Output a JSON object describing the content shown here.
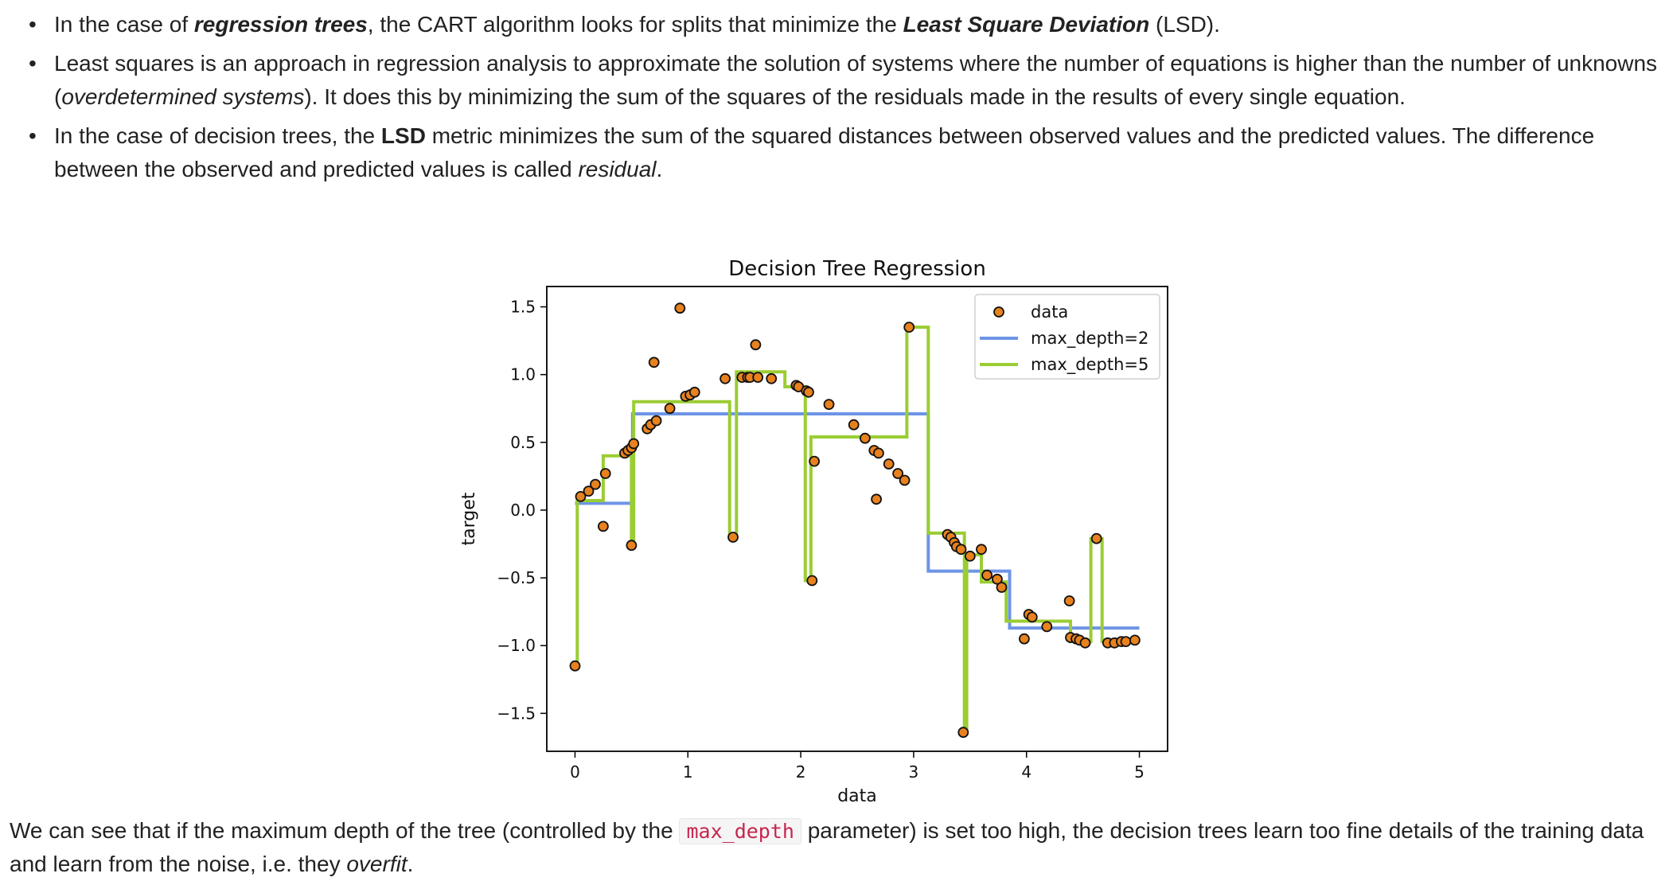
{
  "bullets": [
    {
      "p1": "In the case of ",
      "b1": "regression trees",
      "p2": ", the CART algorithm looks for splits that minimize the ",
      "b2": "Least Square Deviation",
      "p3": " (LSD)."
    },
    {
      "p1": "Least squares is an approach in regression analysis to approximate the solution of systems where the number of equations is higher than the number of unknowns (",
      "i1": "overdetermined systems",
      "p2": "). It does this by minimizing the sum of the squares of the residuals made in the results of every single equation."
    },
    {
      "p1": "In the case of decision trees, the ",
      "b1": "LSD",
      "p2": " metric minimizes the sum of the squared distances between observed values and the predicted values. The difference between the observed and predicted values is called ",
      "i1": "residual",
      "p3": "."
    }
  ],
  "conclusion": {
    "p1": "We can see that if the maximum depth of the tree (controlled by the ",
    "code": "max_depth",
    "p2": " parameter) is set too high, the decision trees learn too fine details of the training data and learn from the noise, i.e. they ",
    "i1": "overfit",
    "p3": "."
  },
  "chart_data": {
    "type": "scatter",
    "title": "Decision Tree Regression",
    "xlabel": "data",
    "ylabel": "target",
    "xlim": [
      -0.25,
      5.25
    ],
    "ylim": [
      -1.78,
      1.65
    ],
    "xticks": [
      0,
      1,
      2,
      3,
      4,
      5
    ],
    "yticks": [
      1.5,
      1.0,
      0.5,
      0.0,
      -0.5,
      -1.0,
      -1.5
    ],
    "ytick_labels": [
      "1.5",
      "1.0",
      "0.5",
      "0.0",
      "−0.5",
      "−1.0",
      "−1.5"
    ],
    "grid": false,
    "legend_position": "top-right",
    "colors": {
      "data": "#e8821e",
      "depth2": "#6d94e6",
      "depth5": "#9acd32"
    },
    "legend": [
      {
        "label": "data",
        "kind": "point"
      },
      {
        "label": "max_depth=2",
        "kind": "line",
        "series": "depth2"
      },
      {
        "label": "max_depth=5",
        "kind": "line",
        "series": "depth5"
      }
    ],
    "points": [
      [
        0.0,
        -1.15
      ],
      [
        0.05,
        0.1
      ],
      [
        0.12,
        0.14
      ],
      [
        0.18,
        0.19
      ],
      [
        0.25,
        -0.12
      ],
      [
        0.27,
        0.27
      ],
      [
        0.44,
        0.42
      ],
      [
        0.47,
        0.44
      ],
      [
        0.5,
        0.46
      ],
      [
        0.5,
        -0.26
      ],
      [
        0.52,
        0.49
      ],
      [
        0.64,
        0.6
      ],
      [
        0.67,
        0.63
      ],
      [
        0.72,
        0.66
      ],
      [
        0.7,
        1.09
      ],
      [
        0.84,
        0.75
      ],
      [
        0.93,
        1.49
      ],
      [
        0.98,
        0.84
      ],
      [
        1.02,
        0.85
      ],
      [
        1.06,
        0.87
      ],
      [
        1.33,
        0.97
      ],
      [
        1.4,
        -0.2
      ],
      [
        1.48,
        0.98
      ],
      [
        1.53,
        0.98
      ],
      [
        1.55,
        0.98
      ],
      [
        1.6,
        1.22
      ],
      [
        1.62,
        0.98
      ],
      [
        1.74,
        0.97
      ],
      [
        1.96,
        0.92
      ],
      [
        1.98,
        0.91
      ],
      [
        2.05,
        0.88
      ],
      [
        2.07,
        0.87
      ],
      [
        2.1,
        -0.52
      ],
      [
        2.12,
        0.36
      ],
      [
        2.25,
        0.78
      ],
      [
        2.47,
        0.63
      ],
      [
        2.57,
        0.53
      ],
      [
        2.65,
        0.44
      ],
      [
        2.69,
        0.42
      ],
      [
        2.67,
        0.08
      ],
      [
        2.78,
        0.34
      ],
      [
        2.86,
        0.27
      ],
      [
        2.92,
        0.22
      ],
      [
        2.96,
        1.35
      ],
      [
        3.3,
        -0.18
      ],
      [
        3.33,
        -0.2
      ],
      [
        3.36,
        -0.24
      ],
      [
        3.38,
        -0.27
      ],
      [
        3.42,
        -0.29
      ],
      [
        3.44,
        -1.64
      ],
      [
        3.5,
        -0.34
      ],
      [
        3.6,
        -0.29
      ],
      [
        3.65,
        -0.48
      ],
      [
        3.74,
        -0.51
      ],
      [
        3.78,
        -0.57
      ],
      [
        3.98,
        -0.95
      ],
      [
        4.02,
        -0.77
      ],
      [
        4.05,
        -0.79
      ],
      [
        4.18,
        -0.86
      ],
      [
        4.38,
        -0.67
      ],
      [
        4.39,
        -0.94
      ],
      [
        4.44,
        -0.95
      ],
      [
        4.47,
        -0.96
      ],
      [
        4.52,
        -0.98
      ],
      [
        4.62,
        -0.21
      ],
      [
        4.72,
        -0.98
      ],
      [
        4.78,
        -0.98
      ],
      [
        4.84,
        -0.97
      ],
      [
        4.88,
        -0.97
      ],
      [
        4.96,
        -0.96
      ]
    ],
    "series": [
      {
        "id": "depth2",
        "label": "max_depth=2",
        "x": [
          0.0,
          0.51,
          0.51,
          3.13,
          3.13,
          3.85,
          3.85,
          5.0
        ],
        "y": [
          0.05,
          0.05,
          0.71,
          0.71,
          -0.45,
          -0.45,
          -0.87,
          -0.87
        ]
      },
      {
        "id": "depth5",
        "label": "max_depth=5",
        "x": [
          0.0,
          0.02,
          0.02,
          0.25,
          0.25,
          0.5,
          0.5,
          0.52,
          0.52,
          1.37,
          1.37,
          1.43,
          1.43,
          1.86,
          1.86,
          2.04,
          2.04,
          2.09,
          2.09,
          2.94,
          2.94,
          3.13,
          3.13,
          3.45,
          3.45,
          3.47,
          3.47,
          3.6,
          3.6,
          3.66,
          3.66,
          3.82,
          3.82,
          4.39,
          4.39,
          4.57,
          4.57,
          4.67,
          4.67,
          5.0
        ],
        "y": [
          -1.15,
          -1.15,
          0.07,
          0.07,
          0.4,
          0.4,
          -0.26,
          -0.26,
          0.8,
          0.8,
          -0.2,
          -0.2,
          1.02,
          1.02,
          0.91,
          0.91,
          -0.52,
          -0.52,
          0.54,
          0.54,
          1.35,
          1.35,
          -0.17,
          -0.17,
          -1.64,
          -1.64,
          -0.33,
          -0.33,
          -0.53,
          -0.53,
          -0.53,
          -0.53,
          -0.82,
          -0.82,
          -0.97,
          -0.97,
          -0.21,
          -0.21,
          -0.97,
          -0.97
        ]
      }
    ]
  }
}
